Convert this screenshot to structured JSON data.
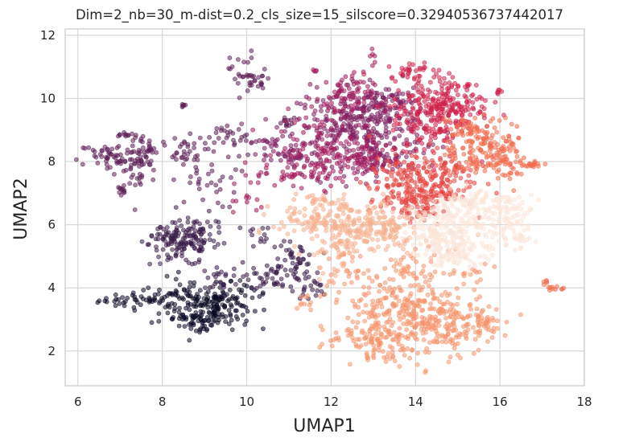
{
  "chart_data": {
    "type": "scatter",
    "title": "Dim=2_nb=30_m-dist=0.2_cls_size=15_silscore=0.32940536737442017",
    "xlabel": "UMAP1",
    "ylabel": "UMAP2",
    "xlim": [
      5.7,
      18.0
    ],
    "ylim": [
      0.9,
      12.2
    ],
    "xticks": [
      6,
      8,
      10,
      12,
      14,
      16,
      18
    ],
    "yticks": [
      2,
      4,
      6,
      8,
      10,
      12
    ],
    "grid": true,
    "legend": "none",
    "colors": {
      "c0": "#0b0924",
      "c1": "#3a1d4a",
      "c2": "#5c1f55",
      "c3": "#7c1e5e",
      "c4": "#a3195b",
      "c5": "#cf2049",
      "c6": "#e6433f",
      "c7": "#f16b4c",
      "c8": "#f5946b",
      "c9": "#f6b18f",
      "c10": "#fbe6d8"
    },
    "clusters": [
      {
        "color": "c0",
        "regions": [
          [
            7.5,
            3.6,
            0.5,
            0.12,
            45
          ],
          [
            8.7,
            3.5,
            0.5,
            0.4,
            110
          ],
          [
            9.3,
            3.4,
            0.4,
            0.35,
            90
          ],
          [
            8.9,
            2.85,
            0.25,
            0.15,
            25
          ],
          [
            9.9,
            3.8,
            0.3,
            0.3,
            25
          ]
        ]
      },
      {
        "color": "c1",
        "regions": [
          [
            8.5,
            5.4,
            0.4,
            0.35,
            110
          ],
          [
            8.05,
            5.6,
            0.2,
            0.15,
            25
          ],
          [
            9.0,
            5.7,
            0.35,
            0.3,
            30
          ],
          [
            10.7,
            4.4,
            0.35,
            0.2,
            45
          ],
          [
            11.2,
            4.9,
            0.2,
            0.25,
            35
          ],
          [
            11.5,
            4.0,
            0.2,
            0.2,
            20
          ],
          [
            9.3,
            4.3,
            0.3,
            0.25,
            20
          ],
          [
            10.3,
            5.4,
            0.4,
            0.3,
            15
          ]
        ]
      },
      {
        "color": "c2",
        "regions": [
          [
            6.8,
            8.15,
            0.4,
            0.25,
            50
          ],
          [
            7.4,
            7.9,
            0.25,
            0.5,
            55
          ],
          [
            7.7,
            8.5,
            0.15,
            0.15,
            20
          ],
          [
            7.1,
            8.9,
            0.1,
            0.05,
            10
          ],
          [
            7.0,
            7.05,
            0.07,
            0.1,
            8
          ],
          [
            8.5,
            8.3,
            0.25,
            0.25,
            30
          ],
          [
            9.0,
            7.3,
            0.4,
            0.4,
            30
          ],
          [
            9.6,
            8.6,
            0.3,
            0.3,
            20
          ],
          [
            9.9,
            10.8,
            0.15,
            0.35,
            25
          ],
          [
            10.3,
            10.5,
            0.15,
            0.2,
            15
          ],
          [
            8.5,
            9.8,
            0.05,
            0.05,
            6
          ],
          [
            9.5,
            8.9,
            0.1,
            0.1,
            10
          ],
          [
            11.0,
            9.2,
            0.15,
            0.1,
            12
          ]
        ]
      },
      {
        "color": "c3",
        "regions": [
          [
            12.7,
            9.1,
            0.75,
            0.6,
            300
          ],
          [
            13.3,
            9.8,
            0.35,
            0.35,
            60
          ],
          [
            11.2,
            8.2,
            0.3,
            0.25,
            40
          ],
          [
            10.5,
            8.5,
            0.25,
            0.2,
            20
          ],
          [
            13.2,
            8.0,
            0.4,
            0.3,
            40
          ]
        ]
      },
      {
        "color": "c4",
        "regions": [
          [
            11.8,
            8.3,
            0.55,
            0.55,
            130
          ],
          [
            12.3,
            10.0,
            0.35,
            0.4,
            80
          ],
          [
            12.8,
            8.1,
            0.35,
            0.3,
            60
          ],
          [
            10.7,
            7.6,
            0.3,
            0.2,
            25
          ],
          [
            10.0,
            6.6,
            0.2,
            0.2,
            10
          ],
          [
            11.6,
            10.9,
            0.05,
            0.05,
            4
          ],
          [
            13.0,
            11.4,
            0.05,
            0.15,
            6
          ]
        ]
      },
      {
        "color": "c5",
        "regions": [
          [
            14.3,
            9.4,
            0.45,
            0.65,
            180
          ],
          [
            15.0,
            9.8,
            0.4,
            0.4,
            90
          ],
          [
            13.9,
            10.9,
            0.25,
            0.15,
            30
          ],
          [
            14.7,
            10.3,
            0.3,
            0.2,
            30
          ],
          [
            16.0,
            10.2,
            0.05,
            0.05,
            5
          ]
        ]
      },
      {
        "color": "c6",
        "regions": [
          [
            13.8,
            7.2,
            0.45,
            0.45,
            150
          ],
          [
            14.6,
            7.5,
            0.4,
            0.5,
            110
          ],
          [
            14.0,
            6.6,
            0.3,
            0.25,
            40
          ]
        ]
      },
      {
        "color": "c7",
        "regions": [
          [
            15.4,
            8.3,
            0.35,
            0.5,
            90
          ],
          [
            15.9,
            8.6,
            0.35,
            0.35,
            60
          ],
          [
            16.3,
            8.0,
            0.3,
            0.3,
            40
          ],
          [
            15.2,
            9.1,
            0.2,
            0.15,
            25
          ],
          [
            16.7,
            7.9,
            0.15,
            0.05,
            15
          ],
          [
            17.3,
            4.0,
            0.1,
            0.06,
            10
          ],
          [
            17.1,
            4.2,
            0.07,
            0.05,
            5
          ]
        ]
      },
      {
        "color": "c8",
        "regions": [
          [
            13.8,
            3.2,
            0.7,
            0.6,
            280
          ],
          [
            13.2,
            2.2,
            0.45,
            0.35,
            80
          ],
          [
            14.7,
            2.6,
            0.45,
            0.45,
            80
          ],
          [
            15.6,
            3.0,
            0.3,
            0.25,
            50
          ],
          [
            12.3,
            4.5,
            0.3,
            0.3,
            30
          ],
          [
            14.0,
            4.6,
            0.4,
            0.3,
            40
          ],
          [
            12.0,
            2.4,
            0.15,
            0.2,
            10
          ],
          [
            11.4,
            3.5,
            0.15,
            0.15,
            10
          ],
          [
            15.4,
            4.4,
            0.2,
            0.2,
            15
          ]
        ]
      },
      {
        "color": "c9",
        "regions": [
          [
            12.7,
            6.0,
            0.65,
            0.35,
            180
          ],
          [
            11.4,
            6.1,
            0.4,
            0.3,
            60
          ],
          [
            12.2,
            5.3,
            0.3,
            0.25,
            40
          ],
          [
            13.4,
            5.6,
            0.3,
            0.3,
            40
          ],
          [
            11.8,
            6.7,
            0.3,
            0.2,
            30
          ],
          [
            12.0,
            4.4,
            0.2,
            0.2,
            10
          ]
        ]
      },
      {
        "color": "c10",
        "regions": [
          [
            15.1,
            5.9,
            0.55,
            0.5,
            220
          ],
          [
            16.3,
            6.3,
            0.25,
            0.35,
            60
          ],
          [
            14.4,
            5.7,
            0.3,
            0.4,
            70
          ],
          [
            15.5,
            6.8,
            0.35,
            0.2,
            50
          ],
          [
            14.9,
            5.0,
            0.3,
            0.25,
            40
          ],
          [
            16.5,
            5.5,
            0.15,
            0.15,
            15
          ]
        ]
      }
    ]
  }
}
